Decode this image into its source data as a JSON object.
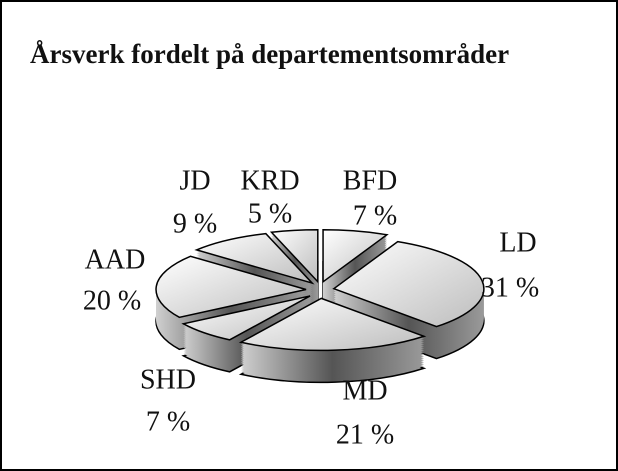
{
  "chart_data": {
    "type": "pie",
    "title": "Årsverk fordelt på departementsområder",
    "categories": [
      "BFD",
      "LD",
      "MD",
      "SHD",
      "AAD",
      "JD",
      "KRD"
    ],
    "values": [
      7,
      31,
      21,
      7,
      20,
      9,
      5
    ],
    "value_labels": [
      "7 %",
      "31 %",
      "21 %",
      "7 %",
      "20 %",
      "9 %",
      "5 %"
    ]
  }
}
